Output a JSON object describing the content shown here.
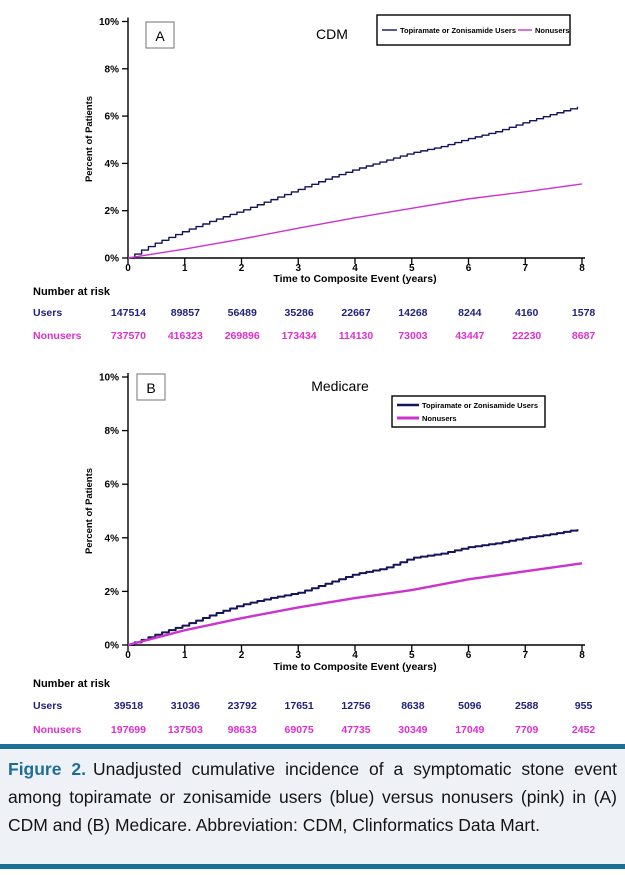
{
  "colors": {
    "users_line": "#14145a",
    "nonusers_line": "#cc33cc",
    "users_table_text": "#22227e",
    "nonusers_table_text": "#dd2fd0",
    "caption_rule": "#1d6f96",
    "caption_heading": "#1d6f98",
    "caption_background": "#eef2f7"
  },
  "chart_data": [
    {
      "type": "line",
      "panel_label": "A",
      "title": "CDM",
      "xlabel": "Time to Composite Event (years)",
      "ylabel": "Percent of Patients",
      "xlim": [
        0,
        8
      ],
      "ylim": [
        0,
        10
      ],
      "grid": false,
      "x_tick_labels": [
        "0",
        "1",
        "2",
        "3",
        "4",
        "5",
        "6",
        "7",
        "8"
      ],
      "y_tick_labels": [
        "0%",
        "2%",
        "4%",
        "6%",
        "8%",
        "10%"
      ],
      "legend_position": "top-right-inline",
      "series": [
        {
          "name": "Topiramate or Zonisamide Users",
          "color": "#14145a",
          "style": "step",
          "width": 1.4,
          "x": [
            0,
            0.25,
            0.5,
            1,
            1.5,
            2,
            2.5,
            3,
            3.5,
            4,
            4.5,
            5,
            5.5,
            6,
            6.5,
            7,
            7.5,
            8
          ],
          "values_pct": [
            0,
            0.35,
            0.65,
            1.15,
            1.6,
            2.0,
            2.45,
            2.9,
            3.35,
            3.75,
            4.1,
            4.45,
            4.7,
            5.05,
            5.35,
            5.75,
            6.1,
            6.45
          ]
        },
        {
          "name": "Nonusers",
          "color": "#cc33cc",
          "style": "line",
          "width": 1.4,
          "x": [
            0,
            1,
            2,
            3,
            4,
            5,
            6,
            7,
            8
          ],
          "values_pct": [
            0,
            0.38,
            0.8,
            1.26,
            1.7,
            2.1,
            2.5,
            2.8,
            3.13
          ]
        }
      ],
      "number_at_risk": {
        "header": "Number at risk",
        "rows": [
          {
            "label": "Users",
            "color": "#22227e",
            "values": [
              "147514",
              "89857",
              "56489",
              "35286",
              "22667",
              "14268",
              "8244",
              "4160",
              "1578"
            ]
          },
          {
            "label": "Nonusers",
            "color": "#dd2fd0",
            "values": [
              "737570",
              "416323",
              "269896",
              "173434",
              "114130",
              "73003",
              "43447",
              "22230",
              "8687"
            ]
          }
        ]
      }
    },
    {
      "type": "line",
      "panel_label": "B",
      "title": "Medicare",
      "xlabel": "Time to Composite Event (years)",
      "ylabel": "Percent of Patients",
      "xlim": [
        0,
        8
      ],
      "ylim": [
        0,
        10
      ],
      "grid": false,
      "x_tick_labels": [
        "0",
        "1",
        "2",
        "3",
        "4",
        "5",
        "6",
        "7",
        "8"
      ],
      "y_tick_labels": [
        "0%",
        "2%",
        "4%",
        "6%",
        "8%",
        "10%"
      ],
      "legend_position": "top-right-stacked",
      "series": [
        {
          "name": "Topiramate or Zonisamide Users",
          "color": "#14145a",
          "style": "step",
          "width": 2.0,
          "x": [
            0,
            0.5,
            1,
            1.5,
            2,
            2.5,
            3,
            3.5,
            4,
            4.5,
            5,
            5.5,
            6,
            6.5,
            7,
            7.5,
            8
          ],
          "values_pct": [
            0,
            0.4,
            0.75,
            1.15,
            1.5,
            1.75,
            1.95,
            2.3,
            2.65,
            2.85,
            3.25,
            3.4,
            3.65,
            3.8,
            4.0,
            4.15,
            4.35
          ]
        },
        {
          "name": "Nonusers",
          "color": "#cc33cc",
          "style": "line",
          "width": 2.4,
          "x": [
            0,
            1,
            2,
            3,
            4,
            5,
            6,
            7,
            8
          ],
          "values_pct": [
            0,
            0.55,
            1.0,
            1.4,
            1.75,
            2.05,
            2.45,
            2.75,
            3.05
          ]
        }
      ],
      "number_at_risk": {
        "header": "Number at risk",
        "rows": [
          {
            "label": "Users",
            "color": "#22227e",
            "values": [
              "39518",
              "31036",
              "23792",
              "17651",
              "12756",
              "8638",
              "5096",
              "2588",
              "955"
            ]
          },
          {
            "label": "Nonusers",
            "color": "#dd2fd0",
            "values": [
              "197699",
              "137503",
              "98633",
              "69075",
              "47735",
              "30349",
              "17049",
              "7709",
              "2452"
            ]
          }
        ]
      }
    }
  ],
  "caption": {
    "heading": "Figure 2.",
    "body": "Unadjusted cumulative incidence of a symptomatic stone event among topiramate or zonisamide users (blue) versus nonusers (pink) in (A) CDM and (B) Medicare. Abbreviation: CDM, Clinformatics Data Mart."
  }
}
